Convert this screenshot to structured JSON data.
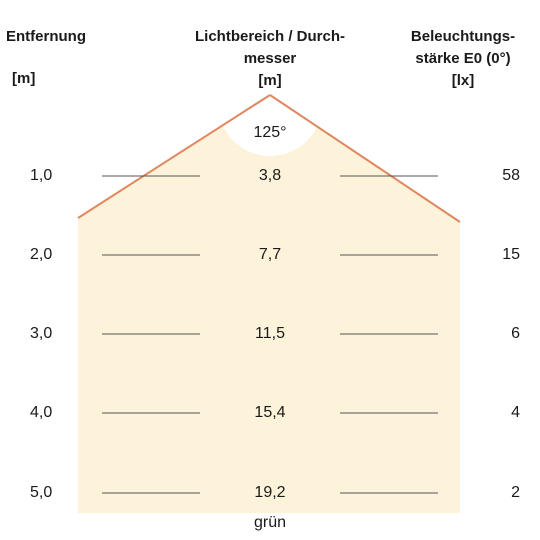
{
  "headers": {
    "distance": {
      "title": "Entfernung",
      "unit": "[m]"
    },
    "diameter": {
      "title_line1": "Lichtbereich / Durch-",
      "title_line2": "messer",
      "unit": "[m]"
    },
    "illuminance": {
      "title_line1": "Beleuchtungs-",
      "title_line2": "stärke E0 (0°)",
      "unit": "[lx]"
    }
  },
  "beam_angle": "125°",
  "rows": [
    {
      "distance": "1,0",
      "diameter": "3,8",
      "illuminance": "58"
    },
    {
      "distance": "2,0",
      "diameter": "7,7",
      "illuminance": "15"
    },
    {
      "distance": "3,0",
      "diameter": "11,5",
      "illuminance": "6"
    },
    {
      "distance": "4,0",
      "diameter": "15,4",
      "illuminance": "4"
    },
    {
      "distance": "5,0",
      "diameter": "19,2",
      "illuminance": "2"
    }
  ],
  "color_label": "grün",
  "colors": {
    "beam_fill": "#fdf3da",
    "beam_edge": "#e0875f",
    "guide_line": "#555555"
  }
}
